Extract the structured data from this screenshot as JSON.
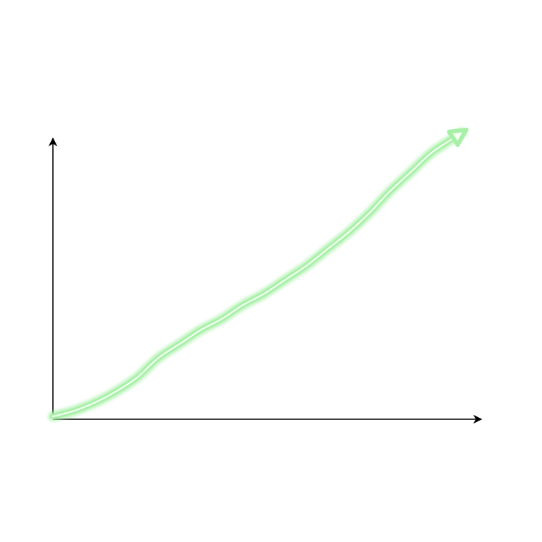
{
  "chart_data": {
    "type": "line",
    "title": "",
    "xlabel": "",
    "ylabel": "",
    "grid": false,
    "legend": "none",
    "xlim": [
      0,
      100
    ],
    "ylim": [
      0,
      100
    ],
    "series": [
      {
        "x": [
          0,
          5,
          10,
          15,
          20,
          25,
          30,
          35,
          40,
          45,
          50,
          55,
          60,
          65,
          70,
          75,
          80,
          85,
          90,
          95,
          97
        ],
        "y": [
          1,
          3,
          6,
          10,
          15,
          22,
          27,
          32,
          36,
          41,
          45,
          50,
          55,
          61,
          67,
          74,
          82,
          89,
          96,
          101,
          103
        ],
        "color": "#a8f0a8",
        "end_arrow": true
      }
    ],
    "axis_color": "#000000"
  }
}
